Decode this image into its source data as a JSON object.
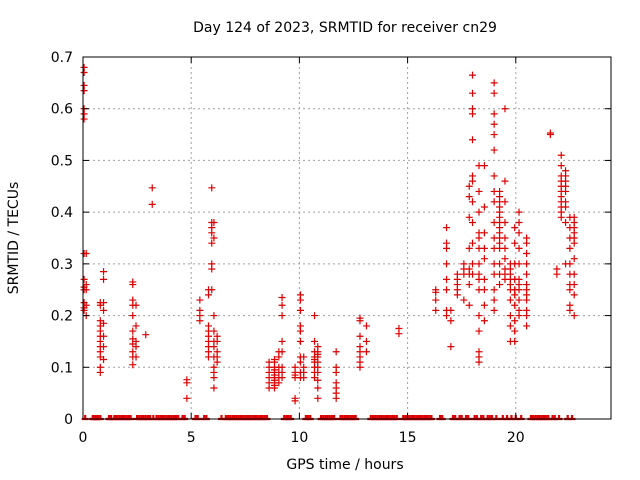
{
  "chart_data": {
    "type": "scatter",
    "title": "Day 124 of 2023, SRMTID for receiver cn29",
    "xlabel": "GPS time / hours",
    "ylabel": "SRMTID / TECUs",
    "xlim": [
      0,
      24.4
    ],
    "ylim": [
      0,
      0.7
    ],
    "xticks": [
      0,
      5,
      10,
      15,
      20
    ],
    "yticks": [
      0,
      0.1,
      0.2,
      0.3,
      0.4,
      0.5,
      0.6,
      0.7
    ],
    "xtick_labels": [
      "0",
      "5",
      "10",
      "15",
      "20"
    ],
    "ytick_labels": [
      "0",
      "0.1",
      "0.2",
      "0.3",
      "0.4",
      "0.5",
      "0.6",
      "0.7"
    ],
    "grid": true,
    "marker": "+",
    "color": "#dd0000",
    "clusters": [
      {
        "x": 0.05,
        "y": [
          0.68,
          0.67,
          0.645,
          0.635,
          0.6,
          0.59,
          0.58,
          0.32,
          0.27,
          0.255,
          0.25,
          0.225,
          0.215,
          0.21
        ]
      },
      {
        "x": 0.15,
        "y": [
          0.32,
          0.26,
          0.25,
          0.22,
          0.2
        ]
      },
      {
        "x": 0.8,
        "y": [
          0.225,
          0.22,
          0.19,
          0.18,
          0.17,
          0.16,
          0.15,
          0.14,
          0.13,
          0.12,
          0.1,
          0.09
        ]
      },
      {
        "x": 0.95,
        "y": [
          0.285,
          0.27,
          0.225,
          0.21,
          0.185,
          0.16,
          0.14,
          0.115
        ]
      },
      {
        "x": 2.3,
        "y": [
          0.265,
          0.26,
          0.23,
          0.22,
          0.2,
          0.17,
          0.155,
          0.145,
          0.13,
          0.12,
          0.105
        ]
      },
      {
        "x": 2.45,
        "y": [
          0.22,
          0.18,
          0.15,
          0.14,
          0.12
        ]
      },
      {
        "x": 2.9,
        "y": [
          0.163
        ]
      },
      {
        "x": 3.2,
        "y": [
          0.447,
          0.415
        ]
      },
      {
        "x": 4.8,
        "y": [
          0.076,
          0.07,
          0.04
        ]
      },
      {
        "x": 5.4,
        "y": [
          0.23,
          0.21,
          0.2,
          0.19
        ]
      },
      {
        "x": 5.8,
        "y": [
          0.25,
          0.24,
          0.18,
          0.17,
          0.16,
          0.15,
          0.14,
          0.13,
          0.12
        ]
      },
      {
        "x": 5.95,
        "y": [
          0.447,
          0.38,
          0.37,
          0.36,
          0.34,
          0.3,
          0.29,
          0.25
        ]
      },
      {
        "x": 6.05,
        "y": [
          0.38,
          0.35,
          0.2,
          0.17,
          0.15,
          0.14,
          0.12,
          0.1,
          0.09,
          0.08,
          0.06
        ]
      },
      {
        "x": 6.2,
        "y": [
          0.16,
          0.15,
          0.13,
          0.12,
          0.11
        ]
      },
      {
        "x": 8.6,
        "y": [
          0.11,
          0.1,
          0.09,
          0.08,
          0.07,
          0.06
        ]
      },
      {
        "x": 8.85,
        "y": [
          0.115,
          0.11,
          0.1,
          0.095,
          0.09,
          0.085,
          0.08,
          0.075,
          0.07,
          0.065,
          0.06
        ]
      },
      {
        "x": 9.05,
        "y": [
          0.13,
          0.12,
          0.1,
          0.09,
          0.08,
          0.07
        ]
      },
      {
        "x": 9.2,
        "y": [
          0.235,
          0.22,
          0.2,
          0.15,
          0.13,
          0.1,
          0.09,
          0.08
        ]
      },
      {
        "x": 9.8,
        "y": [
          0.1,
          0.09,
          0.085,
          0.08,
          0.04,
          0.035
        ]
      },
      {
        "x": 10.05,
        "y": [
          0.24,
          0.23,
          0.21,
          0.18,
          0.17,
          0.15,
          0.12,
          0.11,
          0.09,
          0.08
        ]
      },
      {
        "x": 10.2,
        "y": [
          0.12,
          0.1,
          0.09,
          0.08
        ]
      },
      {
        "x": 10.7,
        "y": [
          0.2,
          0.15,
          0.13,
          0.12,
          0.115,
          0.11,
          0.1,
          0.09,
          0.08
        ]
      },
      {
        "x": 10.85,
        "y": [
          0.14,
          0.13,
          0.125,
          0.12,
          0.11,
          0.1,
          0.09,
          0.075,
          0.06,
          0.04
        ]
      },
      {
        "x": 11.7,
        "y": [
          0.13,
          0.1,
          0.09,
          0.07,
          0.06,
          0.05,
          0.04
        ]
      },
      {
        "x": 12.8,
        "y": [
          0.195,
          0.19,
          0.16,
          0.14,
          0.13,
          0.12,
          0.11,
          0.1
        ]
      },
      {
        "x": 13.1,
        "y": [
          0.18,
          0.15,
          0.13
        ]
      },
      {
        "x": 14.6,
        "y": [
          0.175,
          0.165
        ]
      },
      {
        "x": 16.3,
        "y": [
          0.25,
          0.245,
          0.23,
          0.21
        ]
      },
      {
        "x": 16.8,
        "y": [
          0.37,
          0.34,
          0.33,
          0.3,
          0.27,
          0.25,
          0.21,
          0.2
        ]
      },
      {
        "x": 17.0,
        "y": [
          0.21,
          0.19,
          0.14
        ]
      },
      {
        "x": 17.3,
        "y": [
          0.28,
          0.27,
          0.26,
          0.25,
          0.24
        ]
      },
      {
        "x": 17.6,
        "y": [
          0.3,
          0.29,
          0.28,
          0.23
        ]
      },
      {
        "x": 17.85,
        "y": [
          0.45,
          0.43,
          0.39,
          0.33,
          0.29,
          0.28,
          0.26,
          0.22
        ]
      },
      {
        "x": 18.0,
        "y": [
          0.665,
          0.63,
          0.6,
          0.59,
          0.54,
          0.47,
          0.46,
          0.42,
          0.38,
          0.34,
          0.3,
          0.28
        ]
      },
      {
        "x": 18.3,
        "y": [
          0.49,
          0.44,
          0.4,
          0.36,
          0.35,
          0.33,
          0.3,
          0.28,
          0.27,
          0.25,
          0.2,
          0.17,
          0.13,
          0.12,
          0.11
        ]
      },
      {
        "x": 18.55,
        "y": [
          0.49,
          0.41,
          0.36,
          0.33,
          0.31,
          0.27,
          0.25,
          0.22,
          0.19
        ]
      },
      {
        "x": 19.0,
        "y": [
          0.65,
          0.63,
          0.59,
          0.57,
          0.55,
          0.52,
          0.47,
          0.44,
          0.42,
          0.38,
          0.35,
          0.33,
          0.3,
          0.28,
          0.25,
          0.23,
          0.21
        ]
      },
      {
        "x": 19.25,
        "y": [
          0.44,
          0.43,
          0.42,
          0.41,
          0.4,
          0.39,
          0.38,
          0.37,
          0.36,
          0.35,
          0.34,
          0.33,
          0.3,
          0.28,
          0.26
        ]
      },
      {
        "x": 19.5,
        "y": [
          0.6,
          0.46,
          0.42,
          0.38,
          0.35,
          0.33,
          0.31,
          0.29,
          0.28,
          0.27
        ]
      },
      {
        "x": 19.75,
        "y": [
          0.3,
          0.29,
          0.28,
          0.27,
          0.26,
          0.25,
          0.23,
          0.2,
          0.18,
          0.15
        ]
      },
      {
        "x": 19.95,
        "y": [
          0.37,
          0.34,
          0.3,
          0.27,
          0.25,
          0.24,
          0.22,
          0.19,
          0.17,
          0.15
        ]
      },
      {
        "x": 20.15,
        "y": [
          0.4,
          0.38,
          0.36,
          0.33,
          0.3,
          0.27,
          0.26,
          0.25,
          0.23,
          0.21,
          0.2
        ]
      },
      {
        "x": 20.5,
        "y": [
          0.35,
          0.34,
          0.32,
          0.3,
          0.28,
          0.26,
          0.25,
          0.24,
          0.23,
          0.21,
          0.2,
          0.18
        ]
      },
      {
        "x": 21.6,
        "y": [
          0.553,
          0.55
        ]
      },
      {
        "x": 21.9,
        "y": [
          0.29,
          0.28
        ]
      },
      {
        "x": 22.1,
        "y": [
          0.51,
          0.49,
          0.47,
          0.46,
          0.45,
          0.44,
          0.43,
          0.42,
          0.41,
          0.4,
          0.39
        ]
      },
      {
        "x": 22.3,
        "y": [
          0.48,
          0.47,
          0.46,
          0.45,
          0.44,
          0.42,
          0.41,
          0.38,
          0.3
        ]
      },
      {
        "x": 22.5,
        "y": [
          0.39,
          0.37,
          0.35,
          0.33,
          0.3,
          0.28,
          0.26,
          0.25,
          0.22,
          0.21
        ]
      },
      {
        "x": 22.7,
        "y": [
          0.39,
          0.38,
          0.37,
          0.36,
          0.35,
          0.34,
          0.31,
          0.28,
          0.26,
          0.24,
          0.2
        ]
      }
    ],
    "zero_series": {
      "y": 0,
      "x": [
        0.1,
        0.45,
        0.5,
        0.55,
        0.6,
        0.65,
        0.7,
        0.8,
        1.2,
        1.25,
        1.3,
        1.45,
        1.5,
        1.6,
        1.7,
        1.8,
        1.9,
        2.0,
        2.1,
        2.2,
        2.5,
        2.6,
        2.7,
        2.8,
        2.9,
        3.0,
        3.1,
        3.25,
        3.4,
        3.5,
        3.6,
        3.7,
        3.8,
        3.9,
        4.0,
        4.1,
        4.2,
        4.3,
        4.4,
        4.6,
        4.7,
        5.2,
        5.3,
        5.6,
        5.7,
        6.4,
        6.6,
        6.7,
        6.8,
        6.9,
        7.0,
        7.1,
        7.2,
        7.3,
        7.4,
        7.5,
        7.6,
        7.7,
        7.8,
        7.9,
        8.0,
        8.1,
        8.2,
        8.3,
        8.4,
        8.5,
        9.3,
        9.4,
        9.5,
        9.6,
        10.3,
        10.4,
        10.5,
        11.0,
        11.1,
        11.2,
        11.3,
        11.4,
        11.5,
        11.6,
        11.9,
        12.0,
        12.1,
        12.2,
        12.3,
        12.4,
        12.5,
        12.6,
        13.3,
        13.4,
        13.5,
        13.6,
        13.7,
        13.8,
        13.9,
        14.0,
        14.1,
        14.2,
        14.3,
        14.4,
        14.5,
        14.8,
        14.9,
        15.0,
        15.1,
        15.2,
        15.3,
        15.4,
        15.5,
        15.6,
        15.7,
        15.8,
        15.9,
        16.0,
        16.1,
        16.5,
        16.6,
        17.1,
        17.2,
        17.4,
        17.5,
        17.7,
        17.8,
        18.1,
        18.2,
        18.4,
        18.5,
        18.7,
        18.8,
        18.9,
        19.1,
        19.4,
        19.6,
        19.8,
        20.0,
        20.25,
        20.7,
        20.8,
        20.9,
        21.0,
        21.1,
        21.2,
        21.3,
        21.4,
        21.5,
        21.7,
        21.8,
        22.0,
        22.4,
        22.6
      ]
    }
  }
}
